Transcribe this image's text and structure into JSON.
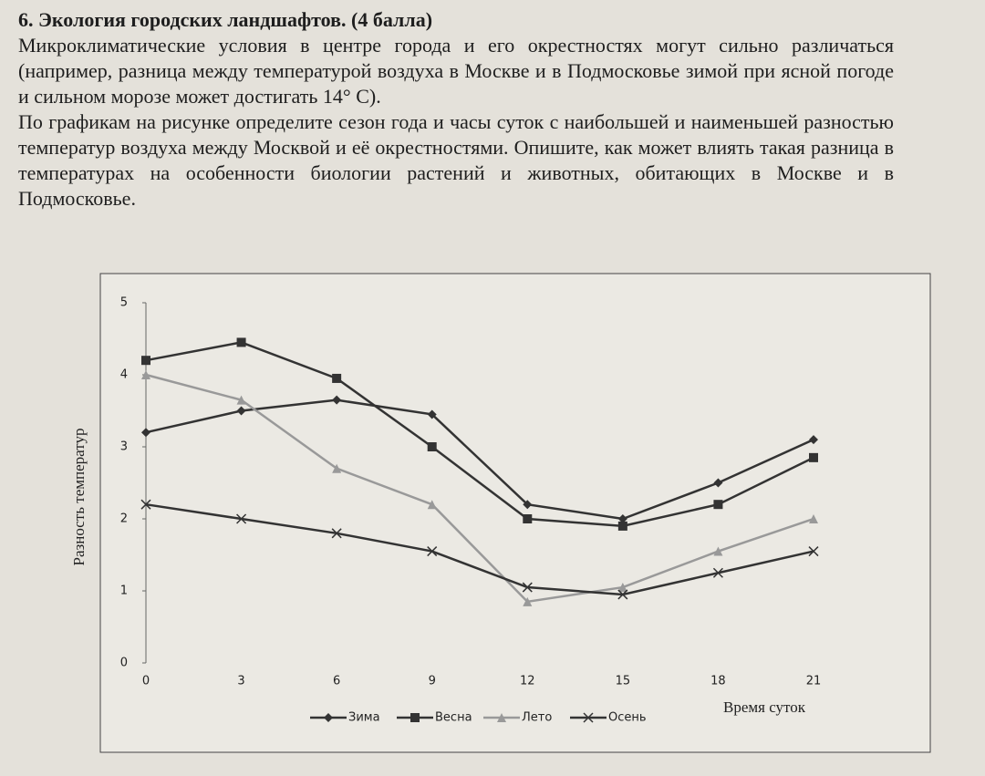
{
  "heading": "6. Экология городских ландшафтов. (4 балла)",
  "paragraphs": [
    "Микроклиматические условия в центре города и его окрестностях могут сильно различаться (например, разница между температурой воздуха в Москве и в Подмосковье зимой при ясной погоде и сильном морозе может достигать 14° С).",
    "По графикам на рисунке определите сезон года и часы суток с наибольшей и наименьшей разностью температур воздуха между Москвой и её окрестностями. Опишите, как может влиять такая разница в температурах на особенности биологии растений и животных, обитающих в Москве и в Подмосковье."
  ],
  "chart_data": {
    "type": "line",
    "y_label": "Разность температур",
    "x_label": "Время суток",
    "x": [
      0,
      3,
      6,
      9,
      12,
      15,
      18,
      21
    ],
    "xlim": [
      0,
      21
    ],
    "xticks": [
      0,
      3,
      6,
      9,
      12,
      15,
      18,
      21
    ],
    "ylim": [
      0,
      5
    ],
    "yticks": [
      0,
      1,
      2,
      3,
      4,
      5
    ],
    "legend": "bottom",
    "series": [
      {
        "name": "Зима",
        "color": "#333333",
        "marker": "diamond",
        "values": [
          3.2,
          3.5,
          3.65,
          3.45,
          2.2,
          2.0,
          2.5,
          3.1
        ]
      },
      {
        "name": "Весна",
        "color": "#333333",
        "marker": "square",
        "values": [
          4.2,
          4.45,
          3.95,
          3.0,
          2.0,
          1.9,
          2.2,
          2.85
        ]
      },
      {
        "name": "Лето",
        "color": "#999999",
        "marker": "triangle",
        "values": [
          4.0,
          3.65,
          2.7,
          2.2,
          0.85,
          1.05,
          1.55,
          2.0
        ]
      },
      {
        "name": "Осень",
        "color": "#333333",
        "marker": "cross",
        "values": [
          2.2,
          2.0,
          1.8,
          1.55,
          1.05,
          0.95,
          1.25,
          1.55
        ]
      }
    ]
  }
}
